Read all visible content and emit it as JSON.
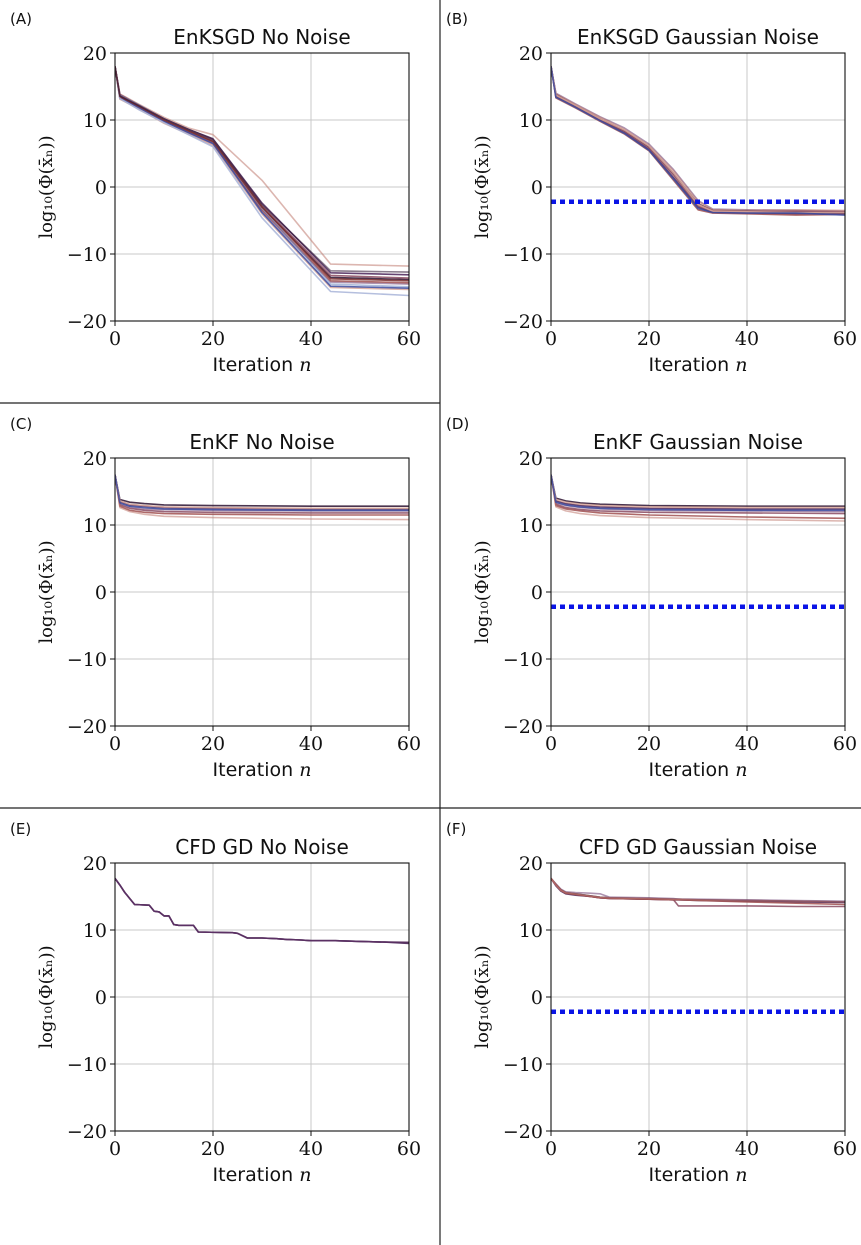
{
  "figure": {
    "colors": {
      "noise_line": "#0a14e6",
      "grid": "#c8c8c8",
      "frame": "#111111",
      "series_palette": [
        "#2a1030",
        "#4a2358",
        "#6a3a70",
        "#8a4a60",
        "#a05050",
        "#c07a70",
        "#d9a79a",
        "#3a4aa0",
        "#6f86c0",
        "#a8b4d8",
        "#7a2e2e"
      ]
    }
  },
  "chart_data": [
    {
      "letter": "(A)",
      "title": "EnKSGD No Noise",
      "type": "line",
      "xlabel_text": "Iteration",
      "xlabel_var": "n",
      "ylabel": "log₁₀(Φ(x̄ₙ))",
      "xlim": [
        0,
        60
      ],
      "ylim": [
        -20,
        20
      ],
      "xticks": [
        "0",
        "20",
        "40",
        "60"
      ],
      "yticks": [
        "20",
        "10",
        "0",
        "−10",
        "−20"
      ],
      "grid": true,
      "noise_level": null,
      "x": [
        0,
        1,
        5,
        10,
        15,
        20,
        30,
        44,
        60
      ],
      "series": [
        {
          "values": [
            18,
            13.5,
            12.0,
            10.0,
            8.3,
            6.8,
            -3.0,
            -13.5,
            -13.8
          ]
        },
        {
          "values": [
            18,
            13.8,
            12.2,
            10.2,
            8.6,
            7.2,
            -2.4,
            -12.8,
            -13.1
          ]
        },
        {
          "values": [
            18,
            13.2,
            11.7,
            9.7,
            8.0,
            6.4,
            -3.6,
            -14.2,
            -14.5
          ]
        },
        {
          "values": [
            18,
            13.6,
            12.1,
            10.1,
            8.5,
            7.0,
            -2.8,
            -13.2,
            -13.6
          ]
        },
        {
          "values": [
            18,
            13.4,
            11.9,
            9.9,
            8.2,
            6.6,
            -3.4,
            -14.0,
            -14.3
          ]
        },
        {
          "values": [
            18,
            13.9,
            12.3,
            10.4,
            8.8,
            7.8,
            1.0,
            -11.5,
            -11.8
          ]
        },
        {
          "values": [
            18,
            13.1,
            11.6,
            9.5,
            7.9,
            6.2,
            -4.0,
            -15.0,
            -15.3
          ]
        },
        {
          "values": [
            18,
            13.3,
            11.8,
            9.8,
            8.1,
            6.5,
            -3.8,
            -14.8,
            -15.1
          ]
        },
        {
          "values": [
            18,
            13.7,
            12.2,
            10.1,
            8.5,
            6.9,
            -3.2,
            -14.5,
            -14.9
          ]
        },
        {
          "values": [
            18,
            13.2,
            11.5,
            9.6,
            7.8,
            6.0,
            -4.6,
            -15.6,
            -16.2
          ]
        },
        {
          "values": [
            18,
            13.5,
            12.0,
            10.0,
            8.4,
            6.8,
            -3.0,
            -13.7,
            -14.0
          ]
        },
        {
          "values": [
            18,
            13.6,
            12.1,
            10.2,
            8.6,
            7.1,
            -2.6,
            -12.5,
            -12.7
          ]
        }
      ]
    },
    {
      "letter": "(B)",
      "title": "EnKSGD Gaussian Noise",
      "type": "line",
      "xlabel_text": "Iteration",
      "xlabel_var": "n",
      "ylabel": "log₁₀(Φ(x̄ₙ))",
      "xlim": [
        0,
        60
      ],
      "ylim": [
        -20,
        20
      ],
      "xticks": [
        "0",
        "20",
        "40",
        "60"
      ],
      "yticks": [
        "20",
        "10",
        "0",
        "−10",
        "−20"
      ],
      "grid": true,
      "noise_level": -2.2,
      "x": [
        0,
        1,
        5,
        10,
        15,
        20,
        25,
        30,
        33,
        40,
        50,
        60
      ],
      "series": [
        {
          "values": [
            18,
            13.8,
            12.2,
            10.2,
            8.4,
            6.0,
            2.0,
            -2.5,
            -3.5,
            -3.6,
            -3.7,
            -3.8
          ]
        },
        {
          "values": [
            18,
            13.5,
            12.0,
            10.0,
            8.1,
            5.6,
            1.4,
            -3.0,
            -3.8,
            -3.9,
            -4.0,
            -4.0
          ]
        },
        {
          "values": [
            18,
            14.0,
            12.4,
            10.5,
            8.8,
            6.4,
            2.6,
            -2.0,
            -3.3,
            -3.4,
            -3.5,
            -3.6
          ]
        },
        {
          "values": [
            18,
            13.6,
            12.1,
            10.1,
            8.3,
            5.8,
            1.8,
            -2.8,
            -3.6,
            -3.7,
            -3.6,
            -3.7
          ]
        },
        {
          "values": [
            18,
            13.3,
            11.8,
            9.8,
            7.9,
            5.4,
            1.0,
            -3.4,
            -3.9,
            -4.0,
            -4.2,
            -4.1
          ]
        },
        {
          "values": [
            18,
            13.9,
            12.3,
            10.4,
            8.6,
            6.2,
            2.4,
            -2.2,
            -3.4,
            -3.5,
            -3.4,
            -3.5
          ]
        },
        {
          "values": [
            18,
            13.7,
            12.2,
            10.2,
            8.5,
            6.1,
            2.1,
            -2.6,
            -3.6,
            -3.7,
            -3.8,
            -3.8
          ]
        },
        {
          "values": [
            18,
            13.4,
            11.9,
            9.9,
            8.0,
            5.5,
            1.2,
            -3.2,
            -3.8,
            -3.9,
            -3.9,
            -4.2
          ]
        }
      ]
    },
    {
      "letter": "(C)",
      "title": "EnKF No Noise",
      "type": "line",
      "xlabel_text": "Iteration",
      "xlabel_var": "n",
      "ylabel": "log₁₀(Φ(x̄ₙ))",
      "xlim": [
        0,
        60
      ],
      "ylim": [
        -20,
        20
      ],
      "xticks": [
        "0",
        "20",
        "40",
        "60"
      ],
      "yticks": [
        "20",
        "10",
        "0",
        "−10",
        "−20"
      ],
      "grid": true,
      "noise_level": null,
      "x": [
        0,
        1,
        3,
        6,
        10,
        20,
        40,
        60
      ],
      "series": [
        {
          "values": [
            17.5,
            13.8,
            13.4,
            13.2,
            13.0,
            12.9,
            12.8,
            12.8
          ]
        },
        {
          "values": [
            17.5,
            13.5,
            13.0,
            12.8,
            12.6,
            12.5,
            12.4,
            12.4
          ]
        },
        {
          "values": [
            17.5,
            13.2,
            12.7,
            12.4,
            12.3,
            12.2,
            12.1,
            12.1
          ]
        },
        {
          "values": [
            17.5,
            13.0,
            12.5,
            12.2,
            12.0,
            11.9,
            11.8,
            11.8
          ]
        },
        {
          "values": [
            17.5,
            12.8,
            12.2,
            11.9,
            11.7,
            11.6,
            11.5,
            11.5
          ]
        },
        {
          "values": [
            17.5,
            12.6,
            12.0,
            11.6,
            11.3,
            11.1,
            10.9,
            10.8
          ]
        },
        {
          "values": [
            17.5,
            13.6,
            13.1,
            12.9,
            12.7,
            12.6,
            12.5,
            12.5
          ]
        },
        {
          "values": [
            17.5,
            13.3,
            12.8,
            12.6,
            12.4,
            12.3,
            12.2,
            12.2
          ]
        }
      ]
    },
    {
      "letter": "(D)",
      "title": "EnKF Gaussian Noise",
      "type": "line",
      "xlabel_text": "Iteration",
      "xlabel_var": "n",
      "ylabel": "log₁₀(Φ(x̄ₙ))",
      "xlim": [
        0,
        60
      ],
      "ylim": [
        -20,
        20
      ],
      "xticks": [
        "0",
        "20",
        "40",
        "60"
      ],
      "yticks": [
        "20",
        "10",
        "0",
        "−10",
        "−20"
      ],
      "grid": true,
      "noise_level": -2.2,
      "x": [
        0,
        1,
        3,
        6,
        10,
        20,
        40,
        60
      ],
      "series": [
        {
          "values": [
            17.5,
            14.0,
            13.6,
            13.3,
            13.1,
            12.9,
            12.8,
            12.8
          ]
        },
        {
          "values": [
            17.5,
            13.6,
            13.2,
            12.9,
            12.7,
            12.5,
            12.4,
            12.4
          ]
        },
        {
          "values": [
            17.5,
            13.3,
            12.9,
            12.6,
            12.4,
            12.2,
            12.1,
            12.0
          ]
        },
        {
          "values": [
            17.5,
            13.1,
            12.6,
            12.3,
            12.1,
            11.9,
            11.8,
            11.7
          ]
        },
        {
          "values": [
            17.5,
            12.9,
            12.4,
            12.1,
            11.8,
            11.5,
            11.2,
            11.0
          ]
        },
        {
          "values": [
            17.5,
            12.7,
            12.1,
            11.7,
            11.4,
            11.1,
            10.8,
            10.6
          ]
        },
        {
          "values": [
            17.5,
            13.8,
            13.4,
            13.1,
            12.9,
            12.7,
            12.6,
            12.6
          ]
        },
        {
          "values": [
            17.5,
            13.4,
            13.0,
            12.7,
            12.5,
            12.3,
            12.2,
            12.2
          ]
        }
      ]
    },
    {
      "letter": "(E)",
      "title": "CFD GD No Noise",
      "type": "line",
      "xlabel_text": "Iteration",
      "xlabel_var": "n",
      "ylabel": "log₁₀(Φ(x̄ₙ))",
      "xlim": [
        0,
        60
      ],
      "ylim": [
        -20,
        20
      ],
      "xticks": [
        "0",
        "20",
        "40",
        "60"
      ],
      "yticks": [
        "20",
        "10",
        "0",
        "−10",
        "−20"
      ],
      "grid": true,
      "noise_level": null,
      "x": [
        0,
        1,
        2,
        3,
        4,
        7,
        8,
        9,
        10,
        11,
        12,
        13,
        16,
        17,
        24,
        25,
        27,
        30,
        33,
        35,
        38,
        40,
        45,
        50,
        55,
        60
      ],
      "series": [
        {
          "values": [
            17.7,
            16.7,
            15.6,
            14.7,
            13.8,
            13.7,
            12.8,
            12.7,
            12.1,
            12.1,
            10.8,
            10.7,
            10.7,
            9.7,
            9.6,
            9.5,
            8.8,
            8.8,
            8.7,
            8.6,
            8.5,
            8.4,
            8.4,
            8.3,
            8.2,
            8.1
          ]
        },
        {
          "values": [
            17.7,
            16.7,
            15.6,
            14.7,
            13.8,
            13.7,
            12.8,
            12.7,
            12.1,
            12.1,
            10.8,
            10.7,
            10.7,
            9.7,
            9.6,
            9.5,
            8.8,
            8.8,
            8.7,
            8.6,
            8.5,
            8.4,
            8.4,
            8.3,
            8.2,
            8.0
          ]
        },
        {
          "values": [
            17.7,
            16.7,
            15.6,
            14.7,
            13.8,
            13.7,
            12.8,
            12.7,
            12.1,
            12.1,
            10.8,
            10.7,
            10.7,
            9.7,
            9.6,
            9.5,
            8.8,
            8.8,
            8.7,
            8.6,
            8.5,
            8.4,
            8.4,
            8.3,
            8.2,
            8.2
          ]
        }
      ]
    },
    {
      "letter": "(F)",
      "title": "CFD GD Gaussian Noise",
      "type": "line",
      "xlabel_text": "Iteration",
      "xlabel_var": "n",
      "ylabel": "log₁₀(Φ(x̄ₙ))",
      "xlim": [
        0,
        60
      ],
      "ylim": [
        -20,
        20
      ],
      "xticks": [
        "0",
        "20",
        "40",
        "60"
      ],
      "yticks": [
        "20",
        "10",
        "0",
        "−10",
        "−20"
      ],
      "grid": true,
      "noise_level": -2.2,
      "x": [
        0,
        1,
        2,
        3,
        5,
        8,
        10,
        12,
        20,
        25,
        26,
        30,
        40,
        50,
        60
      ],
      "series": [
        {
          "values": [
            17.7,
            16.8,
            16.0,
            15.6,
            15.4,
            15.1,
            14.9,
            14.8,
            14.7,
            14.6,
            14.6,
            14.5,
            14.4,
            14.3,
            14.2
          ]
        },
        {
          "values": [
            17.7,
            16.6,
            15.8,
            15.4,
            15.2,
            15.0,
            14.8,
            14.7,
            14.6,
            14.5,
            14.5,
            14.4,
            14.3,
            14.2,
            14.1
          ]
        },
        {
          "values": [
            17.7,
            16.9,
            16.1,
            15.7,
            15.6,
            15.5,
            15.4,
            14.9,
            14.8,
            14.7,
            14.6,
            14.6,
            14.5,
            14.4,
            14.3
          ]
        },
        {
          "values": [
            17.7,
            16.7,
            15.9,
            15.5,
            15.3,
            15.0,
            14.8,
            14.7,
            14.6,
            14.5,
            13.6,
            13.6,
            13.6,
            13.5,
            13.5
          ]
        },
        {
          "values": [
            17.7,
            16.8,
            16.0,
            15.5,
            15.3,
            15.0,
            14.8,
            14.7,
            14.6,
            14.5,
            14.5,
            14.4,
            14.2,
            14.0,
            13.8
          ]
        },
        {
          "values": [
            17.7,
            16.7,
            15.9,
            15.6,
            15.4,
            15.1,
            14.9,
            14.8,
            14.7,
            14.6,
            14.6,
            14.5,
            14.4,
            14.3,
            14.2
          ]
        }
      ]
    }
  ]
}
